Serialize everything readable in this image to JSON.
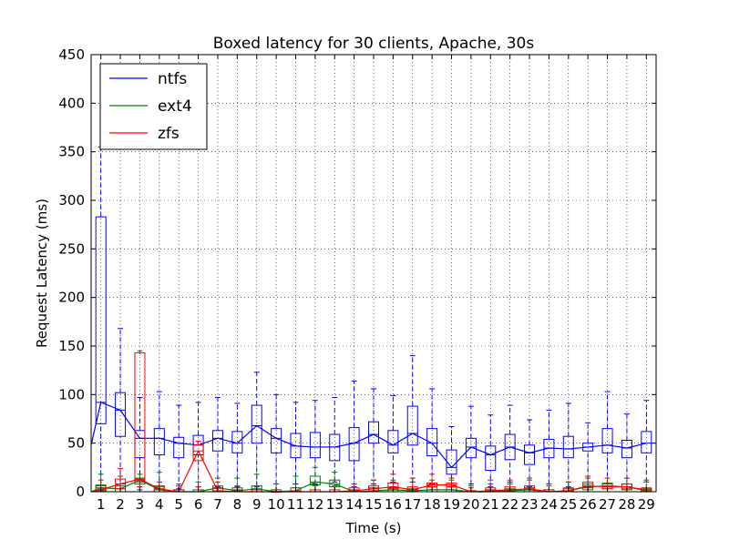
{
  "chart_data": {
    "type": "box",
    "title": "Boxed latency for 30 clients, Apache, 30s",
    "xlabel": "Time (s)",
    "ylabel": "Request Latency (ms)",
    "xlim": [
      0.5,
      29.5
    ],
    "ylim": [
      0,
      450
    ],
    "yticks": [
      0,
      50,
      100,
      150,
      200,
      250,
      300,
      350,
      400,
      450
    ],
    "xticks": [
      1,
      2,
      3,
      4,
      5,
      6,
      7,
      8,
      9,
      10,
      11,
      12,
      13,
      14,
      15,
      16,
      17,
      18,
      19,
      20,
      21,
      22,
      23,
      24,
      25,
      26,
      27,
      28,
      29
    ],
    "grid": true,
    "legend_position": "top-left",
    "legend": [
      {
        "label": "ntfs",
        "color": "#0000ff"
      },
      {
        "label": "ext4",
        "color": "#008000"
      },
      {
        "label": "zfs",
        "color": "#ff0000"
      }
    ],
    "series": [
      {
        "name": "ntfs",
        "color": "#0000ff",
        "x": [
          1,
          2,
          3,
          4,
          5,
          6,
          7,
          8,
          9,
          10,
          11,
          12,
          13,
          14,
          15,
          16,
          17,
          18,
          19,
          20,
          21,
          22,
          23,
          24,
          25,
          26,
          27,
          28,
          29
        ],
        "whislo": [
          2,
          3,
          2,
          3,
          3,
          5,
          5,
          5,
          5,
          8,
          8,
          8,
          10,
          5,
          8,
          10,
          10,
          8,
          5,
          8,
          5,
          10,
          5,
          8,
          5,
          5,
          8,
          5,
          10
        ],
        "q1": [
          70,
          57,
          35,
          38,
          35,
          38,
          42,
          40,
          50,
          40,
          35,
          35,
          32,
          32,
          50,
          40,
          48,
          37,
          18,
          35,
          22,
          33,
          28,
          35,
          35,
          42,
          40,
          35,
          40
        ],
        "med": [
          92,
          84,
          55,
          55,
          50,
          48,
          55,
          50,
          68,
          55,
          47,
          46,
          46,
          50,
          59,
          48,
          60,
          50,
          25,
          46,
          38,
          46,
          40,
          45,
          44,
          46,
          48,
          45,
          50
        ],
        "q3": [
          283,
          102,
          63,
          65,
          56,
          58,
          63,
          62,
          89,
          65,
          60,
          61,
          59,
          66,
          72,
          63,
          88,
          65,
          43,
          55,
          47,
          59,
          48,
          54,
          57,
          50,
          65,
          53,
          62
        ],
        "whishi": [
          355,
          168,
          97,
          103,
          89,
          92,
          97,
          91,
          123,
          100,
          92,
          94,
          97,
          114,
          106,
          99,
          140,
          106,
          67,
          88,
          79,
          89,
          74,
          84,
          91,
          71,
          103,
          80,
          94
        ],
        "line_start": 48
      },
      {
        "name": "ext4",
        "color": "#008000",
        "x": [
          1,
          2,
          3,
          4,
          5,
          6,
          7,
          8,
          9,
          10,
          11,
          12,
          13,
          14,
          15,
          16,
          17,
          18,
          19,
          20,
          21,
          22,
          23,
          24,
          25,
          26,
          27,
          28,
          29
        ],
        "whislo": [
          0,
          0,
          5,
          0,
          0,
          0,
          0,
          0,
          0,
          0,
          0,
          0,
          0,
          0,
          0,
          0,
          0,
          0,
          0,
          0,
          0,
          0,
          0,
          0,
          0,
          0,
          0,
          0,
          0
        ],
        "q1": [
          1,
          0,
          8,
          0,
          0,
          0,
          0,
          0,
          0,
          0,
          0,
          7,
          5,
          0,
          0,
          0,
          0,
          0,
          0,
          0,
          0,
          0,
          0,
          0,
          0,
          2,
          3,
          2,
          0
        ],
        "med": [
          4,
          3,
          12,
          2,
          0,
          0,
          4,
          1,
          3,
          0,
          1,
          10,
          8,
          0,
          1,
          2,
          1,
          2,
          2,
          0,
          0,
          1,
          2,
          0,
          1,
          5,
          6,
          5,
          1
        ],
        "q3": [
          7,
          6,
          14,
          5,
          2,
          2,
          6,
          4,
          6,
          2,
          4,
          16,
          12,
          2,
          4,
          4,
          3,
          5,
          5,
          1,
          2,
          3,
          4,
          2,
          3,
          8,
          9,
          8,
          3
        ],
        "whishi": [
          18,
          16,
          18,
          20,
          8,
          10,
          14,
          14,
          18,
          8,
          16,
          25,
          20,
          8,
          12,
          12,
          14,
          12,
          12,
          6,
          8,
          8,
          12,
          8,
          10,
          14,
          14,
          14,
          12
        ],
        "line_start": 0
      },
      {
        "name": "zfs",
        "color": "#ff0000",
        "x": [
          1,
          2,
          3,
          4,
          5,
          6,
          7,
          8,
          9,
          10,
          11,
          12,
          13,
          14,
          15,
          16,
          17,
          18,
          19,
          20,
          21,
          22,
          23,
          24,
          25,
          26,
          27,
          28,
          29
        ],
        "whislo": [
          0,
          0,
          5,
          0,
          0,
          5,
          0,
          0,
          0,
          0,
          0,
          0,
          0,
          0,
          0,
          0,
          0,
          0,
          0,
          0,
          0,
          0,
          0,
          0,
          0,
          0,
          0,
          0,
          0
        ],
        "q1": [
          0,
          3,
          10,
          0,
          0,
          32,
          0,
          0,
          0,
          0,
          0,
          0,
          0,
          0,
          1,
          3,
          0,
          5,
          5,
          0,
          0,
          0,
          0,
          0,
          0,
          4,
          3,
          3,
          0
        ],
        "med": [
          2,
          8,
          13,
          3,
          0,
          42,
          1,
          0,
          0,
          0,
          0,
          0,
          0,
          1,
          3,
          5,
          2,
          7,
          7,
          0,
          1,
          2,
          3,
          0,
          1,
          6,
          5,
          5,
          2
        ],
        "q3": [
          6,
          13,
          143,
          6,
          2,
          48,
          4,
          2,
          2,
          0,
          1,
          2,
          2,
          4,
          6,
          9,
          5,
          9,
          9,
          1,
          4,
          5,
          6,
          2,
          4,
          10,
          8,
          8,
          4
        ],
        "whishi": [
          12,
          24,
          145,
          10,
          6,
          52,
          10,
          6,
          6,
          2,
          4,
          6,
          6,
          8,
          12,
          18,
          14,
          18,
          14,
          4,
          12,
          12,
          14,
          6,
          10,
          16,
          14,
          14,
          10
        ],
        "line_start": 0
      }
    ]
  }
}
